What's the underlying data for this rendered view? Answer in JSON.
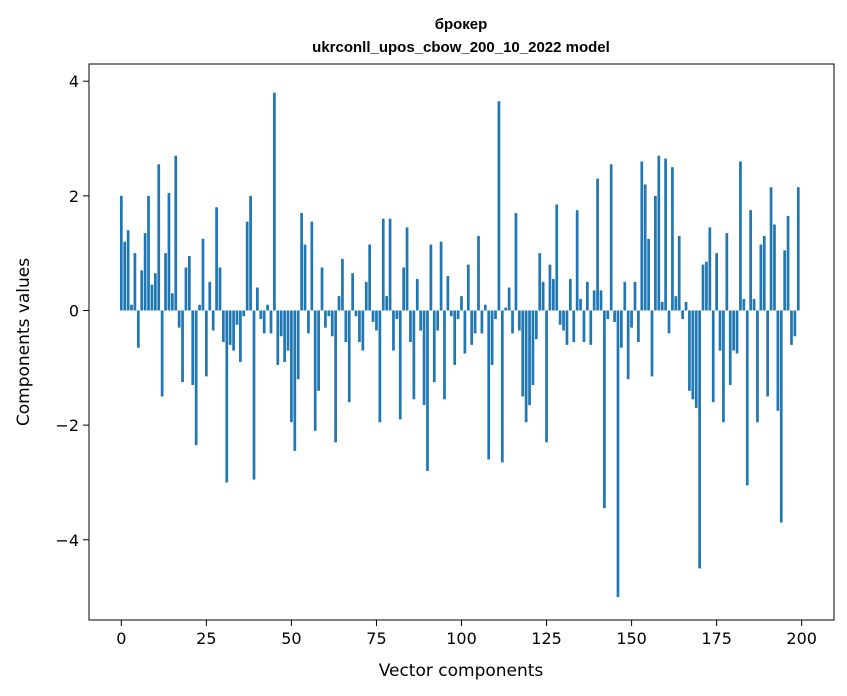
{
  "chart_data": {
    "type": "bar",
    "title": "брокер",
    "subtitle": "ukrconll_upos_cbow_200_10_2022 model",
    "xlabel": "Vector components",
    "ylabel": "Components values",
    "xlim": [
      -9.5,
      209.5
    ],
    "ylim": [
      -5.4,
      4.3
    ],
    "xticks": [
      0,
      25,
      50,
      75,
      100,
      125,
      150,
      175,
      200
    ],
    "yticks": [
      -4,
      -2,
      0,
      2,
      4
    ],
    "ytick_labels": [
      "−4",
      "−2",
      "0",
      "2",
      "4"
    ],
    "grid": false,
    "bar_color": "#1f77b4",
    "x": [
      0,
      1,
      2,
      3,
      4,
      5,
      6,
      7,
      8,
      9,
      10,
      11,
      12,
      13,
      14,
      15,
      16,
      17,
      18,
      19,
      20,
      21,
      22,
      23,
      24,
      25,
      26,
      27,
      28,
      29,
      30,
      31,
      32,
      33,
      34,
      35,
      36,
      37,
      38,
      39,
      40,
      41,
      42,
      43,
      44,
      45,
      46,
      47,
      48,
      49,
      50,
      51,
      52,
      53,
      54,
      55,
      56,
      57,
      58,
      59,
      60,
      61,
      62,
      63,
      64,
      65,
      66,
      67,
      68,
      69,
      70,
      71,
      72,
      73,
      74,
      75,
      76,
      77,
      78,
      79,
      80,
      81,
      82,
      83,
      84,
      85,
      86,
      87,
      88,
      89,
      90,
      91,
      92,
      93,
      94,
      95,
      96,
      97,
      98,
      99,
      100,
      101,
      102,
      103,
      104,
      105,
      106,
      107,
      108,
      109,
      110,
      111,
      112,
      113,
      114,
      115,
      116,
      117,
      118,
      119,
      120,
      121,
      122,
      123,
      124,
      125,
      126,
      127,
      128,
      129,
      130,
      131,
      132,
      133,
      134,
      135,
      136,
      137,
      138,
      139,
      140,
      141,
      142,
      143,
      144,
      145,
      146,
      147,
      148,
      149,
      150,
      151,
      152,
      153,
      154,
      155,
      156,
      157,
      158,
      159,
      160,
      161,
      162,
      163,
      164,
      165,
      166,
      167,
      168,
      169,
      170,
      171,
      172,
      173,
      174,
      175,
      176,
      177,
      178,
      179,
      180,
      181,
      182,
      183,
      184,
      185,
      186,
      187,
      188,
      189,
      190,
      191,
      192,
      193,
      194,
      195,
      196,
      197,
      198,
      199
    ],
    "values": [
      2.0,
      1.2,
      1.4,
      0.1,
      1.0,
      -0.65,
      0.7,
      1.35,
      2.0,
      0.45,
      0.65,
      2.55,
      -1.5,
      1.0,
      2.05,
      0.3,
      2.7,
      -0.3,
      -1.25,
      0.75,
      0.95,
      -1.3,
      -2.35,
      0.1,
      1.25,
      -1.15,
      0.5,
      -0.35,
      1.8,
      0.75,
      -0.55,
      -3.0,
      -0.6,
      -0.7,
      -0.25,
      -0.9,
      -0.1,
      1.55,
      2.0,
      -2.95,
      0.4,
      -0.15,
      -0.4,
      0.1,
      -0.4,
      3.8,
      -0.95,
      -0.45,
      -0.9,
      -0.7,
      -1.95,
      -2.45,
      -1.2,
      1.7,
      1.15,
      -0.4,
      1.55,
      -2.1,
      -1.4,
      0.75,
      -0.3,
      -0.1,
      -0.45,
      -2.3,
      0.25,
      0.9,
      -0.55,
      -1.6,
      0.65,
      -0.1,
      -0.55,
      -0.7,
      0.5,
      1.15,
      -0.2,
      -0.35,
      -1.95,
      1.6,
      0.25,
      1.6,
      -0.7,
      -0.15,
      -1.9,
      0.75,
      1.45,
      -0.55,
      -1.55,
      0.55,
      -0.35,
      -1.65,
      -2.8,
      1.15,
      -1.25,
      -0.35,
      1.2,
      -1.55,
      0.6,
      -0.1,
      -0.95,
      -0.15,
      0.25,
      -0.75,
      0.8,
      -0.6,
      -0.4,
      1.3,
      -0.4,
      0.1,
      -2.6,
      -0.95,
      -0.15,
      3.65,
      -2.65,
      0.05,
      0.4,
      -0.4,
      1.7,
      -0.35,
      -1.5,
      -1.95,
      -1.65,
      -1.3,
      -0.5,
      1.0,
      0.5,
      -2.3,
      0.8,
      0.55,
      1.85,
      -0.25,
      -0.35,
      -0.6,
      0.55,
      -0.55,
      1.75,
      0.2,
      -0.55,
      0.5,
      -0.6,
      0.35,
      2.3,
      0.35,
      -3.45,
      -0.15,
      2.55,
      -0.2,
      -5.0,
      -0.65,
      0.5,
      -1.2,
      -0.3,
      0.5,
      -0.55,
      2.6,
      2.2,
      1.25,
      -1.15,
      2.0,
      2.7,
      0.15,
      2.65,
      -0.4,
      2.5,
      0.25,
      1.3,
      -0.15,
      0.15,
      -1.4,
      -1.55,
      -1.7,
      -4.5,
      0.8,
      0.85,
      1.45,
      -1.6,
      1.0,
      -0.7,
      -1.95,
      1.35,
      -1.3,
      -0.7,
      -0.75,
      2.6,
      0.2,
      -3.05,
      1.75,
      0.2,
      -1.95,
      1.15,
      1.3,
      -1.5,
      2.15,
      1.5,
      -1.75,
      -3.7,
      1.05,
      1.65,
      -0.6,
      -0.45,
      2.15
    ]
  }
}
